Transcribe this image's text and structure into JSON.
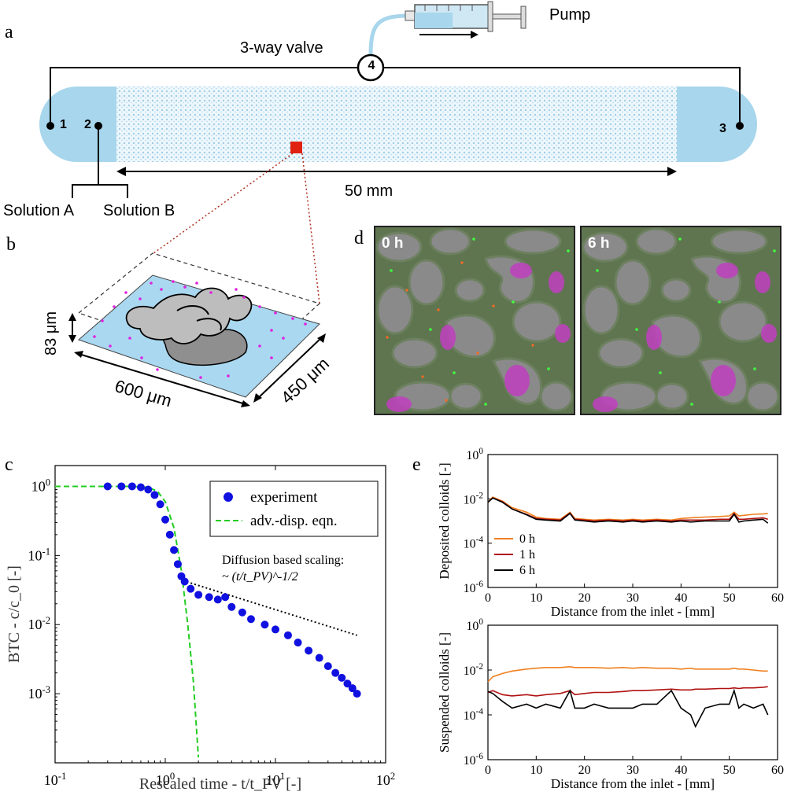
{
  "panel_a": {
    "letter": "a",
    "pump_label": "Pump",
    "valve_label": "3-way valve",
    "valve_number": "4",
    "port_labels": [
      "1",
      "2",
      "3"
    ],
    "length_label": "50 mm",
    "solution_a": "Solution A",
    "solution_b": "Solution B",
    "colors": {
      "channel": "#a8d6ec",
      "pattern": "#cfe8f4",
      "marker": "#e02010"
    }
  },
  "panel_b": {
    "letter": "b",
    "height_label": "83 μm",
    "width_label": "600 μm",
    "depth_label": "450 μm",
    "colors": {
      "base": "#a9d8f0",
      "obstacle": "#b8b8b8",
      "particles": "#e020e0"
    }
  },
  "panel_d": {
    "letter": "d",
    "images": [
      {
        "label": "0 h"
      },
      {
        "label": "6 h"
      }
    ],
    "colors": {
      "fluid": "#5f7550",
      "grain": "#8c8c8c",
      "trapped": "#c040c0"
    }
  },
  "panel_c": {
    "letter": "c",
    "chart_data": {
      "type": "scatter",
      "xlabel": "Rescaled time - t/t_PV [-]",
      "ylabel": "BTC - c/c_0 [-]",
      "x_log": true,
      "y_log": true,
      "xlim": [
        0.1,
        100
      ],
      "ylim": [
        0.0001,
        2
      ],
      "x_ticks": [
        "10^-1",
        "10^0",
        "10^1",
        "10^2"
      ],
      "y_ticks": [
        "10^0",
        "10^-1",
        "10^-2",
        "10^-3"
      ],
      "legend": [
        "experiment",
        "adv.-disp. eqn."
      ],
      "legend_position": "top-right",
      "annotation_line1": "Diffusion based scaling:",
      "annotation_line2": "~ (t/t_PV)^-1/2",
      "series": [
        {
          "name": "experiment",
          "color": "#1010e0",
          "x": [
            0.3,
            0.4,
            0.5,
            0.6,
            0.7,
            0.8,
            0.9,
            1.0,
            1.1,
            1.2,
            1.3,
            1.4,
            1.5,
            1.7,
            2.0,
            2.5,
            3.0,
            3.5,
            4.0,
            5.0,
            6.0,
            8.0,
            10,
            13,
            16,
            20,
            25,
            30,
            35,
            40,
            45,
            50,
            55
          ],
          "y": [
            1.0,
            1.0,
            1.0,
            0.97,
            0.9,
            0.75,
            0.55,
            0.33,
            0.2,
            0.12,
            0.075,
            0.05,
            0.042,
            0.033,
            0.027,
            0.025,
            0.023,
            0.025,
            0.018,
            0.015,
            0.012,
            0.01,
            0.0085,
            0.007,
            0.0055,
            0.0042,
            0.0033,
            0.0025,
            0.002,
            0.0017,
            0.0014,
            0.0012,
            0.001
          ]
        },
        {
          "name": "adv.-disp. eqn.",
          "color": "#22cc22",
          "x": [
            0.1,
            0.3,
            0.5,
            0.7,
            0.85,
            1.0,
            1.2,
            1.4,
            1.6,
            1.8,
            2.0
          ],
          "y": [
            1.0,
            1.0,
            1.0,
            0.97,
            0.85,
            0.6,
            0.25,
            0.06,
            0.01,
            0.0015,
            0.00012
          ]
        },
        {
          "name": "scaling",
          "color": "#000000",
          "x": [
            1.7,
            55
          ],
          "y": [
            0.04,
            0.007
          ]
        }
      ]
    }
  },
  "panel_e": {
    "letter": "e",
    "chart_data": [
      {
        "type": "line",
        "xlabel": "Distance from the inlet - [mm]",
        "ylabel": "Deposited colloids [-]",
        "y_log": true,
        "xlim": [
          0,
          60
        ],
        "ylim": [
          1e-06,
          1
        ],
        "x_ticks": [
          "0",
          "10",
          "20",
          "30",
          "40",
          "50",
          "60"
        ],
        "y_ticks": [
          "10^0",
          "10^-2",
          "10^-4",
          "10^-6"
        ],
        "legend": [
          "0 h",
          "1 h",
          "6 h"
        ],
        "legend_position": "bottom-left",
        "x": [
          0,
          1,
          3,
          5,
          8,
          10,
          12,
          15,
          17,
          18,
          20,
          22,
          25,
          28,
          30,
          32,
          35,
          38,
          40,
          42,
          45,
          48,
          50,
          51,
          52,
          53,
          55,
          57,
          58
        ],
        "series": [
          {
            "name": "0 h",
            "color": "#f08020",
            "y": [
              0.007,
              0.012,
              0.008,
              0.004,
              0.0025,
              0.0015,
              0.0013,
              0.0012,
              0.0025,
              0.0013,
              0.0012,
              0.0011,
              0.0012,
              0.0011,
              0.0012,
              0.0011,
              0.0012,
              0.0011,
              0.0013,
              0.0014,
              0.0015,
              0.0016,
              0.0017,
              0.0025,
              0.0017,
              0.0018,
              0.002,
              0.0021,
              0.0022
            ]
          },
          {
            "name": "1 h",
            "color": "#b01010",
            "y": [
              0.007,
              0.011,
              0.0075,
              0.0035,
              0.002,
              0.0013,
              0.0012,
              0.0011,
              0.0023,
              0.0012,
              0.0011,
              0.001,
              0.0011,
              0.001,
              0.0011,
              0.001,
              0.0011,
              0.001,
              0.0011,
              0.0011,
              0.0011,
              0.0012,
              0.0012,
              0.0022,
              0.0012,
              0.0012,
              0.0013,
              0.0014,
              0.0012
            ]
          },
          {
            "name": "6 h",
            "color": "#000000",
            "y": [
              0.007,
              0.011,
              0.007,
              0.0035,
              0.0019,
              0.0012,
              0.0011,
              0.001,
              0.0022,
              0.0011,
              0.001,
              0.0009,
              0.001,
              0.0009,
              0.001,
              0.0009,
              0.001,
              0.0009,
              0.001,
              0.0009,
              0.001,
              0.001,
              0.001,
              0.002,
              0.0009,
              0.001,
              0.0011,
              0.0012,
              0.0008
            ]
          }
        ]
      },
      {
        "type": "line",
        "xlabel": "Distance from the inlet - [mm]",
        "ylabel": "Suspended colloids [-]",
        "y_log": true,
        "xlim": [
          0,
          60
        ],
        "ylim": [
          1e-06,
          1
        ],
        "x_ticks": [
          "0",
          "10",
          "20",
          "30",
          "40",
          "50",
          "60"
        ],
        "y_ticks": [
          "10^0",
          "10^-2",
          "10^-4",
          "10^-6"
        ],
        "x": [
          0,
          1,
          3,
          5,
          8,
          10,
          12,
          15,
          17,
          18,
          20,
          22,
          25,
          28,
          30,
          32,
          35,
          38,
          40,
          42,
          43,
          45,
          48,
          50,
          51,
          52,
          53,
          55,
          57,
          58
        ],
        "series": [
          {
            "name": "0 h",
            "color": "#f08020",
            "y": [
              0.003,
              0.005,
              0.007,
              0.009,
              0.011,
              0.012,
              0.013,
              0.013,
              0.014,
              0.013,
              0.013,
              0.013,
              0.012,
              0.013,
              0.012,
              0.013,
              0.012,
              0.012,
              0.011,
              0.012,
              0.011,
              0.011,
              0.011,
              0.011,
              0.012,
              0.011,
              0.011,
              0.01,
              0.009,
              0.009
            ]
          },
          {
            "name": "1 h",
            "color": "#b01010",
            "y": [
              0.001,
              0.0012,
              0.0008,
              0.0007,
              0.0008,
              0.0007,
              0.0008,
              0.0009,
              0.0012,
              0.0008,
              0.0009,
              0.001,
              0.001,
              0.0011,
              0.0012,
              0.0012,
              0.0013,
              0.0014,
              0.0013,
              0.0013,
              0.0014,
              0.0014,
              0.0015,
              0.0015,
              0.0016,
              0.0015,
              0.0016,
              0.0016,
              0.0017,
              0.0018
            ]
          },
          {
            "name": "6 h",
            "color": "#000000",
            "y": [
              0.0011,
              0.0009,
              0.0004,
              0.0002,
              0.0003,
              0.0002,
              0.0003,
              0.0002,
              0.0012,
              0.0002,
              0.0002,
              0.0003,
              0.0002,
              0.0002,
              0.0002,
              0.0003,
              0.0003,
              0.0012,
              0.0002,
              0.0001,
              3e-05,
              0.0002,
              0.0003,
              0.0003,
              0.0012,
              0.0002,
              0.0003,
              0.0002,
              0.0003,
              0.0001
            ]
          }
        ]
      }
    ]
  }
}
